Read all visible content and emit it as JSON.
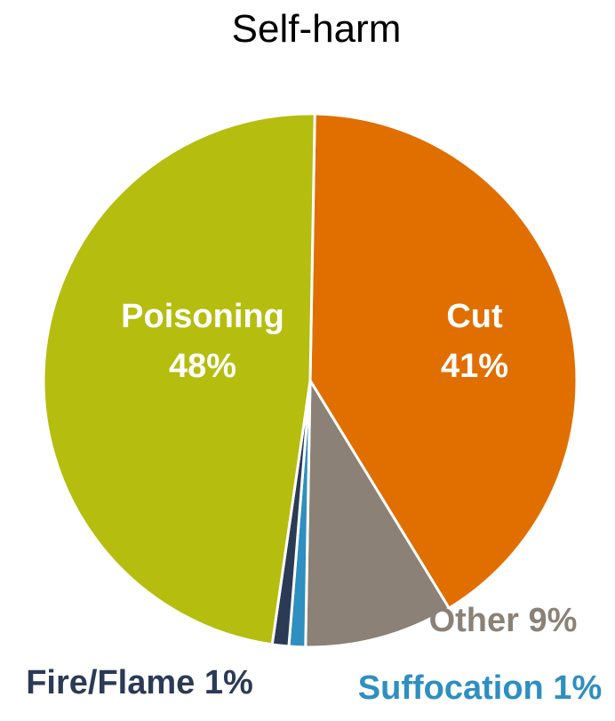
{
  "chart_data": {
    "type": "pie",
    "title": "Self-harm",
    "slices": [
      {
        "name": "Cut",
        "value": 41,
        "label": "41%",
        "color": "#E06F00"
      },
      {
        "name": "Other",
        "value": 9,
        "label": "9%",
        "color": "#8C8177"
      },
      {
        "name": "Suffocation",
        "value": 1,
        "label": "1%",
        "color": "#2E8FC0"
      },
      {
        "name": "Fire/Flame",
        "value": 1,
        "label": "1%",
        "color": "#2B3A55"
      },
      {
        "name": "Poisoning",
        "value": 48,
        "label": "48%",
        "color": "#B5BD0F"
      }
    ],
    "legend": "none"
  }
}
